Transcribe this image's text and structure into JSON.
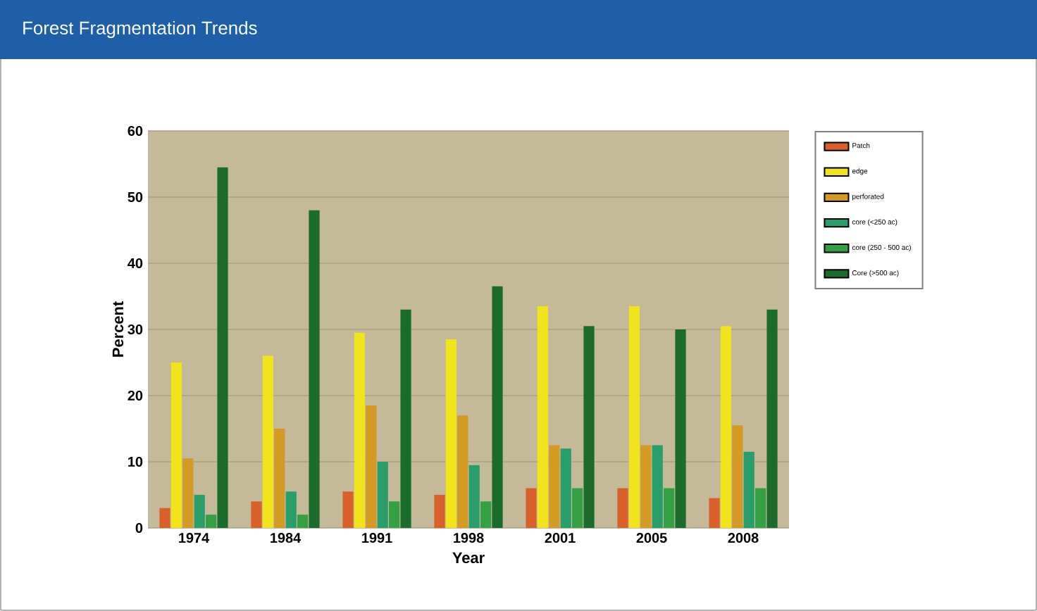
{
  "chart_data": {
    "type": "bar",
    "title": "Forest Fragmentation Trends",
    "xlabel": "Year",
    "ylabel": "Percent",
    "categories": [
      "1974",
      "1984",
      "1991",
      "1998",
      "2001",
      "2005",
      "2008"
    ],
    "series": [
      {
        "name": "Patch",
        "color": "#d9602a",
        "values": [
          3,
          4,
          5.5,
          5,
          6,
          6,
          4.5
        ]
      },
      {
        "name": "edge",
        "color": "#f2e41c",
        "values": [
          25,
          26,
          29.5,
          28.5,
          33.5,
          33.5,
          30.5
        ]
      },
      {
        "name": "perforated",
        "color": "#d49a24",
        "values": [
          10.5,
          15,
          18.5,
          17,
          12.5,
          12.5,
          15.5
        ]
      },
      {
        "name": "core (<250 ac)",
        "color": "#2a9e6a",
        "values": [
          5,
          5.5,
          10,
          9.5,
          12,
          12.5,
          11.5
        ]
      },
      {
        "name": "core (250 - 500 ac)",
        "color": "#35a043",
        "values": [
          2,
          2,
          4,
          4,
          6,
          6,
          6
        ]
      },
      {
        "name": "Core (>500 ac)",
        "color": "#1b6b2c",
        "values": [
          54.5,
          48,
          33,
          36.5,
          30.5,
          30,
          33
        ]
      }
    ],
    "ylim": [
      0,
      60
    ],
    "yticks": [
      0,
      10,
      20,
      30,
      40,
      50,
      60
    ],
    "grid": "y",
    "legend": "right"
  }
}
